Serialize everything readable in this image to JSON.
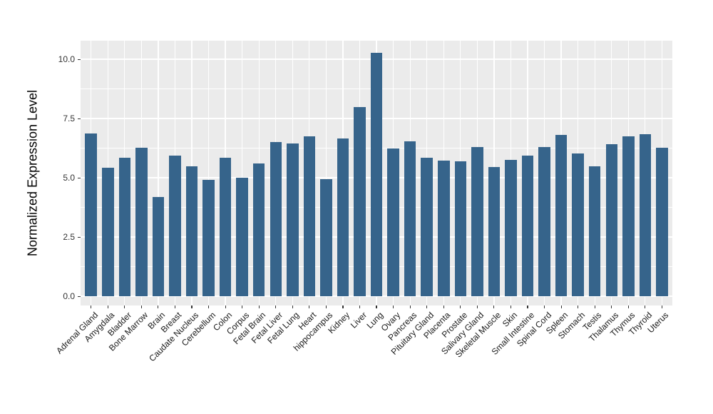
{
  "chart_data": {
    "type": "bar",
    "title": "",
    "xlabel": "",
    "ylabel": "Normalized Expression Level",
    "categories": [
      "Adrenal Gland",
      "Amygdala",
      "Bladder",
      "Bone Marrow",
      "Brain",
      "Breast",
      "Caudate Nucleus",
      "Cerebellum",
      "Colon",
      "Corpus",
      "Fetal Brain",
      "Fetal Liver",
      "Fetal Lung",
      "Heart",
      "hippocampus",
      "Kidney",
      "Liver",
      "Lung",
      "Ovary",
      "Pancreas",
      "Pituitary Gland",
      "Placenta",
      "Prostate",
      "Salivary Gland",
      "Skeletal Muscle",
      "Skin",
      "Small Intestine",
      "Spinal Cord",
      "Spleen",
      "Stomach",
      "Testis",
      "Thalamus",
      "Thymus",
      "Thyroid",
      "Uterus"
    ],
    "values": [
      6.87,
      5.42,
      5.85,
      6.27,
      4.2,
      5.92,
      5.49,
      4.9,
      5.84,
      5.01,
      5.6,
      6.51,
      6.45,
      6.76,
      4.95,
      6.66,
      7.97,
      10.27,
      6.23,
      6.54,
      5.85,
      5.71,
      5.68,
      6.3,
      5.44,
      5.75,
      5.93,
      6.29,
      6.8,
      6.02,
      5.48,
      6.41,
      6.75,
      6.83,
      6.27
    ],
    "yticks": [
      0.0,
      2.5,
      5.0,
      7.5,
      10.0
    ],
    "ytick_labels": [
      "0.0",
      "2.5",
      "5.0",
      "7.5",
      "10.0"
    ],
    "yticks_minor": [
      1.25,
      3.75,
      6.25,
      8.75
    ],
    "ylim": [
      -0.39,
      10.78
    ],
    "legend": null,
    "grid": "on",
    "colors": {
      "bar_fill": "#36648B",
      "panel_background": "#EBEBEB",
      "gridline": "#FFFFFF",
      "tick_text": "#333333",
      "axis_title_text": "#000000",
      "page_background": "#FFFFFF"
    }
  }
}
